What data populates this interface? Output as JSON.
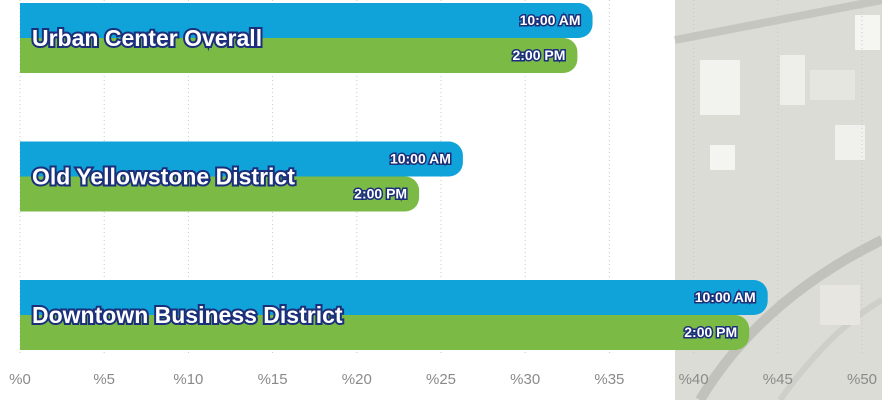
{
  "chart_data": {
    "type": "bar",
    "orientation": "horizontal",
    "categories": [
      "Urban Center Overall",
      "Old Yellowstone District",
      "Downtown Business District"
    ],
    "series": [
      {
        "name": "10:00 AM",
        "color": "#0fa3d9",
        "values": [
          34.0,
          26.3,
          44.4
        ]
      },
      {
        "name": "2:00 PM",
        "color": "#7aba45",
        "values": [
          33.1,
          23.7,
          43.3
        ]
      }
    ],
    "xlim": [
      0,
      50
    ],
    "xticks": [
      {
        "value": 0,
        "label": "%0"
      },
      {
        "value": 5,
        "label": "%5"
      },
      {
        "value": 10,
        "label": "%10"
      },
      {
        "value": 15,
        "label": "%15"
      },
      {
        "value": 20,
        "label": "%20"
      },
      {
        "value": 25,
        "label": "%25"
      },
      {
        "value": 30,
        "label": "%30"
      },
      {
        "value": 35,
        "label": "%35"
      },
      {
        "value": 40,
        "label": "%40"
      },
      {
        "value": 45,
        "label": "%45"
      },
      {
        "value": 50,
        "label": "%50"
      }
    ],
    "grid": true
  }
}
